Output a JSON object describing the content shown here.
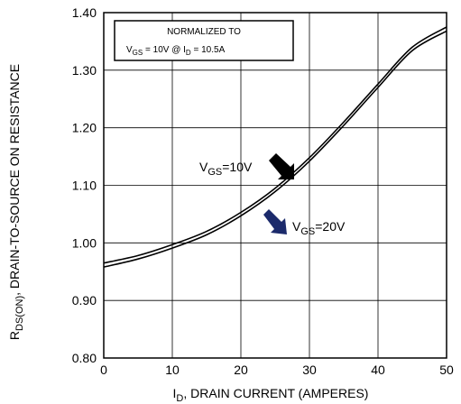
{
  "chart_data": {
    "type": "line",
    "xlabel": {
      "main": "I",
      "sub": "D",
      "rest": ", DRAIN CURRENT (AMPERES)"
    },
    "ylabel": {
      "main": "R",
      "sub": "DS(ON)",
      "rest": ", DRAIN-TO-SOURCE ON RESISTANCE"
    },
    "xlim": [
      0,
      50
    ],
    "ylim": [
      0.8,
      1.4
    ],
    "x_ticks": [
      "0",
      "10",
      "20",
      "30",
      "40",
      "50"
    ],
    "y_ticks": [
      "0.80",
      "0.90",
      "1.00",
      "1.10",
      "1.20",
      "1.30",
      "1.40"
    ],
    "grid": true,
    "series": [
      {
        "name": "VGS=10V",
        "x": [
          0,
          5,
          10,
          15,
          20,
          25,
          30,
          35,
          40,
          45,
          50
        ],
        "y": [
          0.965,
          0.978,
          0.997,
          1.02,
          1.053,
          1.095,
          1.148,
          1.21,
          1.276,
          1.34,
          1.375
        ]
      },
      {
        "name": "VGS=20V",
        "x": [
          0,
          5,
          10,
          15,
          20,
          25,
          30,
          35,
          40,
          45,
          50
        ],
        "y": [
          0.958,
          0.972,
          0.991,
          1.014,
          1.047,
          1.089,
          1.142,
          1.204,
          1.27,
          1.334,
          1.368
        ]
      }
    ],
    "normalized_box": {
      "line1": "NORMALIZED  TO",
      "vgs_main": "V",
      "vgs_sub": "GS",
      "vgs_rest": " = 10V   @   I",
      "id_sub": "D",
      "id_rest": " = 10.5A"
    },
    "annotations": [
      {
        "main": "V",
        "sub": "GS",
        "rest": "=10V",
        "arrow_color": "#000000"
      },
      {
        "main": "V",
        "sub": "GS",
        "rest": "=20V",
        "arrow_color": "#1b2a6b"
      }
    ]
  }
}
